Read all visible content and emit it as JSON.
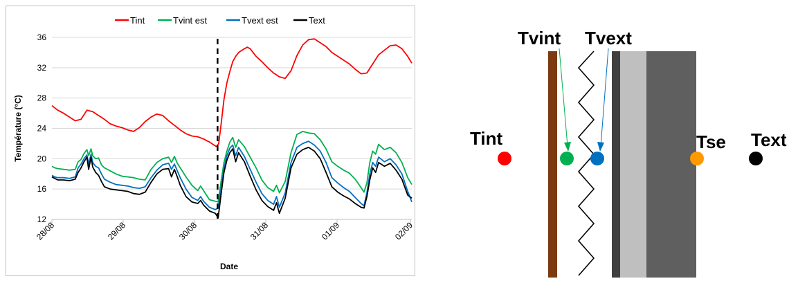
{
  "chart_data": {
    "type": "line",
    "xlabel": "Date",
    "ylabel": "Température (°C)",
    "ylim": [
      12,
      36
    ],
    "yticks": [
      12,
      16,
      20,
      24,
      28,
      32,
      36
    ],
    "xticks": [
      "28/08",
      "29/08",
      "30/08",
      "31/08",
      "01/09",
      "02/09"
    ],
    "xrange_days": [
      0,
      5
    ],
    "grid": "horizontal",
    "legend": "top",
    "event_line_x_day": 2.84,
    "series": [
      {
        "name": "Tint",
        "color": "#ff0000",
        "points": [
          [
            0,
            27.0
          ],
          [
            0.1,
            26.4
          ],
          [
            0.2,
            26.0
          ],
          [
            0.3,
            25.5
          ],
          [
            0.4,
            25.0
          ],
          [
            0.5,
            25.2
          ],
          [
            0.6,
            26.4
          ],
          [
            0.7,
            26.2
          ],
          [
            0.8,
            25.7
          ],
          [
            0.9,
            25.2
          ],
          [
            1.0,
            24.6
          ],
          [
            1.1,
            24.3
          ],
          [
            1.2,
            24.1
          ],
          [
            1.3,
            23.8
          ],
          [
            1.4,
            23.6
          ],
          [
            1.5,
            24.1
          ],
          [
            1.6,
            24.9
          ],
          [
            1.7,
            25.5
          ],
          [
            1.8,
            25.9
          ],
          [
            1.9,
            25.7
          ],
          [
            2.0,
            25.0
          ],
          [
            2.1,
            24.4
          ],
          [
            2.2,
            23.8
          ],
          [
            2.3,
            23.3
          ],
          [
            2.4,
            23.0
          ],
          [
            2.5,
            22.9
          ],
          [
            2.6,
            22.6
          ],
          [
            2.7,
            22.2
          ],
          [
            2.78,
            21.8
          ],
          [
            2.82,
            21.6
          ],
          [
            2.86,
            22.0
          ],
          [
            2.9,
            24.5
          ],
          [
            2.95,
            27.8
          ],
          [
            3.0,
            30.0
          ],
          [
            3.05,
            31.5
          ],
          [
            3.1,
            32.8
          ],
          [
            3.15,
            33.5
          ],
          [
            3.2,
            34.0
          ],
          [
            3.3,
            34.5
          ],
          [
            3.35,
            34.7
          ],
          [
            3.4,
            34.5
          ],
          [
            3.5,
            33.5
          ],
          [
            3.6,
            32.8
          ],
          [
            3.7,
            32.0
          ],
          [
            3.8,
            31.3
          ],
          [
            3.9,
            30.8
          ],
          [
            4.0,
            30.6
          ],
          [
            4.1,
            31.6
          ],
          [
            4.2,
            33.6
          ],
          [
            4.3,
            35.0
          ],
          [
            4.4,
            35.7
          ],
          [
            4.5,
            35.8
          ],
          [
            4.6,
            35.3
          ],
          [
            4.7,
            34.8
          ],
          [
            4.8,
            34.0
          ],
          [
            4.9,
            33.5
          ],
          [
            5.0,
            33.0
          ],
          [
            5.1,
            32.5
          ],
          [
            5.2,
            31.8
          ],
          [
            5.3,
            31.2
          ],
          [
            5.4,
            31.3
          ],
          [
            5.5,
            32.5
          ],
          [
            5.6,
            33.7
          ],
          [
            5.7,
            34.3
          ],
          [
            5.8,
            34.9
          ],
          [
            5.9,
            35.0
          ],
          [
            6.0,
            34.5
          ],
          [
            6.1,
            33.5
          ],
          [
            6.17,
            32.6
          ]
        ]
      },
      {
        "name": "Tvint est",
        "color": "#00b050",
        "points": [
          [
            0,
            19.0
          ],
          [
            0.05,
            18.8
          ],
          [
            0.1,
            18.7
          ],
          [
            0.2,
            18.6
          ],
          [
            0.3,
            18.5
          ],
          [
            0.4,
            18.6
          ],
          [
            0.45,
            19.6
          ],
          [
            0.5,
            19.9
          ],
          [
            0.55,
            20.7
          ],
          [
            0.6,
            21.2
          ],
          [
            0.63,
            20.4
          ],
          [
            0.67,
            21.3
          ],
          [
            0.7,
            20.4
          ],
          [
            0.75,
            20.0
          ],
          [
            0.8,
            20.1
          ],
          [
            0.85,
            19.2
          ],
          [
            0.9,
            18.8
          ],
          [
            1.0,
            18.4
          ],
          [
            1.1,
            18.0
          ],
          [
            1.2,
            17.7
          ],
          [
            1.3,
            17.6
          ],
          [
            1.4,
            17.5
          ],
          [
            1.5,
            17.3
          ],
          [
            1.6,
            17.2
          ],
          [
            1.7,
            18.6
          ],
          [
            1.8,
            19.5
          ],
          [
            1.9,
            20.0
          ],
          [
            2.0,
            20.2
          ],
          [
            2.05,
            19.5
          ],
          [
            2.1,
            20.3
          ],
          [
            2.15,
            19.4
          ],
          [
            2.2,
            18.8
          ],
          [
            2.3,
            17.6
          ],
          [
            2.4,
            16.5
          ],
          [
            2.5,
            15.8
          ],
          [
            2.55,
            16.4
          ],
          [
            2.6,
            15.8
          ],
          [
            2.7,
            14.6
          ],
          [
            2.8,
            14.4
          ],
          [
            2.85,
            14.3
          ],
          [
            2.9,
            17.0
          ],
          [
            2.95,
            19.5
          ],
          [
            3.0,
            21.0
          ],
          [
            3.05,
            22.2
          ],
          [
            3.1,
            22.8
          ],
          [
            3.15,
            21.5
          ],
          [
            3.2,
            22.5
          ],
          [
            3.3,
            21.6
          ],
          [
            3.4,
            20.2
          ],
          [
            3.5,
            18.8
          ],
          [
            3.6,
            17.2
          ],
          [
            3.7,
            16.2
          ],
          [
            3.8,
            15.7
          ],
          [
            3.85,
            16.5
          ],
          [
            3.9,
            15.5
          ],
          [
            4.0,
            17.0
          ],
          [
            4.1,
            20.8
          ],
          [
            4.2,
            23.2
          ],
          [
            4.3,
            23.6
          ],
          [
            4.4,
            23.4
          ],
          [
            4.5,
            23.3
          ],
          [
            4.6,
            22.5
          ],
          [
            4.7,
            21.3
          ],
          [
            4.8,
            19.6
          ],
          [
            4.9,
            19.0
          ],
          [
            5.0,
            18.5
          ],
          [
            5.1,
            18.1
          ],
          [
            5.2,
            17.3
          ],
          [
            5.3,
            16.2
          ],
          [
            5.35,
            15.6
          ],
          [
            5.4,
            16.8
          ],
          [
            5.45,
            19.5
          ],
          [
            5.5,
            21.0
          ],
          [
            5.55,
            20.6
          ],
          [
            5.6,
            21.9
          ],
          [
            5.7,
            21.2
          ],
          [
            5.8,
            21.5
          ],
          [
            5.9,
            20.8
          ],
          [
            6.0,
            19.5
          ],
          [
            6.1,
            17.5
          ],
          [
            6.17,
            16.6
          ]
        ]
      },
      {
        "name": "Tvext est",
        "color": "#0070c0",
        "points": [
          [
            0,
            17.8
          ],
          [
            0.05,
            17.6
          ],
          [
            0.1,
            17.5
          ],
          [
            0.2,
            17.5
          ],
          [
            0.3,
            17.4
          ],
          [
            0.4,
            17.6
          ],
          [
            0.45,
            18.8
          ],
          [
            0.5,
            19.3
          ],
          [
            0.55,
            20.0
          ],
          [
            0.6,
            20.5
          ],
          [
            0.63,
            19.3
          ],
          [
            0.67,
            20.6
          ],
          [
            0.7,
            19.5
          ],
          [
            0.75,
            19.0
          ],
          [
            0.8,
            18.8
          ],
          [
            0.85,
            18.0
          ],
          [
            0.9,
            17.3
          ],
          [
            1.0,
            16.9
          ],
          [
            1.1,
            16.6
          ],
          [
            1.2,
            16.5
          ],
          [
            1.3,
            16.4
          ],
          [
            1.4,
            16.2
          ],
          [
            1.5,
            16.1
          ],
          [
            1.6,
            16.3
          ],
          [
            1.7,
            17.5
          ],
          [
            1.8,
            18.5
          ],
          [
            1.9,
            19.2
          ],
          [
            2.0,
            19.4
          ],
          [
            2.05,
            18.6
          ],
          [
            2.1,
            19.3
          ],
          [
            2.15,
            18.4
          ],
          [
            2.2,
            17.5
          ],
          [
            2.3,
            16.0
          ],
          [
            2.4,
            14.9
          ],
          [
            2.5,
            14.5
          ],
          [
            2.55,
            15.0
          ],
          [
            2.6,
            14.4
          ],
          [
            2.7,
            13.6
          ],
          [
            2.8,
            13.3
          ],
          [
            2.85,
            13.5
          ],
          [
            2.9,
            16.0
          ],
          [
            2.95,
            18.7
          ],
          [
            3.0,
            20.4
          ],
          [
            3.05,
            21.4
          ],
          [
            3.1,
            21.8
          ],
          [
            3.15,
            20.4
          ],
          [
            3.2,
            21.5
          ],
          [
            3.3,
            20.3
          ],
          [
            3.4,
            18.6
          ],
          [
            3.5,
            16.9
          ],
          [
            3.6,
            15.4
          ],
          [
            3.7,
            14.5
          ],
          [
            3.8,
            14.0
          ],
          [
            3.85,
            15.0
          ],
          [
            3.9,
            13.6
          ],
          [
            4.0,
            15.5
          ],
          [
            4.1,
            19.5
          ],
          [
            4.2,
            21.5
          ],
          [
            4.3,
            22.0
          ],
          [
            4.4,
            22.3
          ],
          [
            4.5,
            21.8
          ],
          [
            4.6,
            21.0
          ],
          [
            4.7,
            19.5
          ],
          [
            4.8,
            17.5
          ],
          [
            4.9,
            16.8
          ],
          [
            5.0,
            16.2
          ],
          [
            5.1,
            15.7
          ],
          [
            5.2,
            14.9
          ],
          [
            5.3,
            14.1
          ],
          [
            5.35,
            13.8
          ],
          [
            5.4,
            15.5
          ],
          [
            5.45,
            18.0
          ],
          [
            5.5,
            19.5
          ],
          [
            5.55,
            19.0
          ],
          [
            5.6,
            20.2
          ],
          [
            5.7,
            19.6
          ],
          [
            5.8,
            20.0
          ],
          [
            5.9,
            19.2
          ],
          [
            6.0,
            18.0
          ],
          [
            6.1,
            15.7
          ],
          [
            6.17,
            14.3
          ]
        ]
      },
      {
        "name": "Text",
        "color": "#000000",
        "points": [
          [
            0,
            17.6
          ],
          [
            0.05,
            17.4
          ],
          [
            0.1,
            17.2
          ],
          [
            0.2,
            17.2
          ],
          [
            0.3,
            17.1
          ],
          [
            0.4,
            17.3
          ],
          [
            0.45,
            18.2
          ],
          [
            0.5,
            18.8
          ],
          [
            0.55,
            19.6
          ],
          [
            0.6,
            20.2
          ],
          [
            0.63,
            18.6
          ],
          [
            0.67,
            20.2
          ],
          [
            0.7,
            18.9
          ],
          [
            0.75,
            18.2
          ],
          [
            0.8,
            17.8
          ],
          [
            0.85,
            17.0
          ],
          [
            0.9,
            16.3
          ],
          [
            1.0,
            16.0
          ],
          [
            1.1,
            15.9
          ],
          [
            1.2,
            15.8
          ],
          [
            1.3,
            15.7
          ],
          [
            1.4,
            15.4
          ],
          [
            1.5,
            15.3
          ],
          [
            1.6,
            15.6
          ],
          [
            1.7,
            16.9
          ],
          [
            1.8,
            18.0
          ],
          [
            1.9,
            18.6
          ],
          [
            2.0,
            18.7
          ],
          [
            2.05,
            17.6
          ],
          [
            2.1,
            18.6
          ],
          [
            2.15,
            17.6
          ],
          [
            2.2,
            16.5
          ],
          [
            2.3,
            15.0
          ],
          [
            2.4,
            14.3
          ],
          [
            2.5,
            14.1
          ],
          [
            2.55,
            14.5
          ],
          [
            2.6,
            13.9
          ],
          [
            2.7,
            13.1
          ],
          [
            2.8,
            12.8
          ],
          [
            2.85,
            12.2
          ],
          [
            2.9,
            15.3
          ],
          [
            2.95,
            18.2
          ],
          [
            3.0,
            19.8
          ],
          [
            3.05,
            20.8
          ],
          [
            3.1,
            21.3
          ],
          [
            3.15,
            19.6
          ],
          [
            3.2,
            20.8
          ],
          [
            3.3,
            19.6
          ],
          [
            3.4,
            17.7
          ],
          [
            3.5,
            15.9
          ],
          [
            3.6,
            14.5
          ],
          [
            3.7,
            13.7
          ],
          [
            3.8,
            13.2
          ],
          [
            3.85,
            14.2
          ],
          [
            3.9,
            12.8
          ],
          [
            4.0,
            14.8
          ],
          [
            4.1,
            18.8
          ],
          [
            4.2,
            20.6
          ],
          [
            4.3,
            21.2
          ],
          [
            4.4,
            21.5
          ],
          [
            4.5,
            21.0
          ],
          [
            4.6,
            20.0
          ],
          [
            4.7,
            18.2
          ],
          [
            4.8,
            16.3
          ],
          [
            4.9,
            15.6
          ],
          [
            5.0,
            15.1
          ],
          [
            5.1,
            14.7
          ],
          [
            5.2,
            14.1
          ],
          [
            5.3,
            13.6
          ],
          [
            5.35,
            13.5
          ],
          [
            5.4,
            15.0
          ],
          [
            5.45,
            17.2
          ],
          [
            5.5,
            18.8
          ],
          [
            5.55,
            18.2
          ],
          [
            5.6,
            19.5
          ],
          [
            5.7,
            19.0
          ],
          [
            5.8,
            19.4
          ],
          [
            5.9,
            18.5
          ],
          [
            6.0,
            17.3
          ],
          [
            6.1,
            15.2
          ],
          [
            6.17,
            14.8
          ]
        ]
      }
    ]
  },
  "diagram": {
    "labels": {
      "tint": "Tint",
      "tvint": "Tvint",
      "tvext": "Tvext",
      "tse": "Tse",
      "text": "Text"
    },
    "colors": {
      "tint": "#ff0000",
      "tvint": "#00b050",
      "tvext": "#0070c0",
      "tse": "#ff9900",
      "text": "#000000",
      "wood": "#7b3a10",
      "dark_layer": "#3f3f3f",
      "light_layer": "#bfbfbf",
      "thick_layer": "#5f5f5f"
    }
  }
}
